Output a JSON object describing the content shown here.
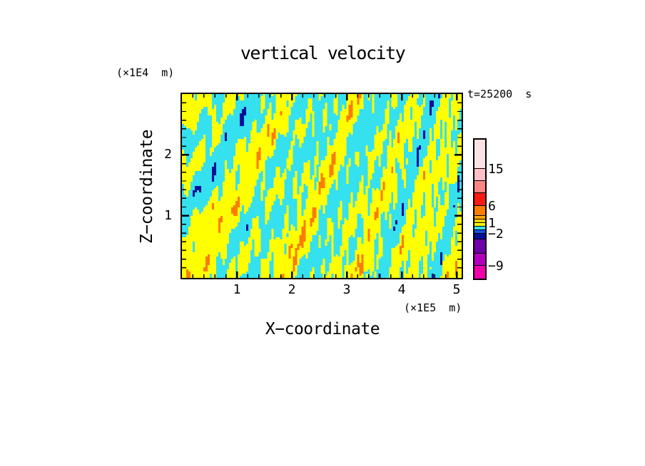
{
  "figure_background": "#FFFFFF",
  "chart_data": {
    "type": "heatmap",
    "title": "vertical velocity",
    "time_annotation": "t=25200  s",
    "xlabel": "X−coordinate",
    "x_units_label": "(×1E5  m)",
    "xlim": [
      0,
      5.09
    ],
    "x_ticks_major": [
      1,
      2,
      3,
      4,
      5
    ],
    "x_minors_per_major": 5,
    "zlabel": "Z−coordinate",
    "z_units_label": "(×1E4  m)",
    "zlim": [
      0,
      3.0
    ],
    "z_ticks_major": [
      1,
      2
    ],
    "z_minors_per_major": 7,
    "grid": false,
    "legend_position": "right-colorbar",
    "field_meaning": "binary-looking filled contours: yellow = positive vertical velocity, cyan = negative; rare extreme specks in orange (strong up) and navy (strong down)",
    "field_colors": {
      "positive": "#FFFF00",
      "negative": "#35E0EF"
    },
    "colorbar": {
      "segments": [
        {
          "color": "#FBE3E3",
          "h": 41
        },
        {
          "color": "#FFBFC6",
          "h": 17
        },
        {
          "color": "#F98585",
          "h": 17
        },
        {
          "color": "#FB1A12",
          "h": 18
        },
        {
          "color": "#FA7D00",
          "h": 14
        },
        {
          "color": "#FFA800",
          "h": 5
        },
        {
          "color": "#FFD400",
          "h": 5
        },
        {
          "color": "#FFFF00",
          "h": 5
        },
        {
          "color": "#35E0EF",
          "h": 5
        },
        {
          "color": "#1453E8",
          "h": 5
        },
        {
          "color": "#001299",
          "h": 8
        },
        {
          "color": "#6E00AA",
          "h": 20
        },
        {
          "color": "#B400BE",
          "h": 17
        },
        {
          "color": "#F200AC",
          "h": 18
        }
      ],
      "labels": [
        {
          "text": "15",
          "boundary": 1
        },
        {
          "text": "6",
          "boundary": 4
        },
        {
          "text": "1",
          "boundary": 7
        },
        {
          "text": "−2",
          "boundary": 10
        },
        {
          "text": "−9",
          "boundary": 13
        }
      ]
    },
    "field": {
      "grid": [
        131,
        86
      ],
      "compress": 0.8,
      "bias": -0.15,
      "bottom_bias": 0.55,
      "speck_hi": 2.6,
      "speck_lo": -2.75,
      "speck_colors": {
        "high": "#FA7D00",
        "low": "#001299"
      },
      "components": [
        [
          1.0,
          2.3,
          1.1,
          0.7
        ],
        [
          0.8,
          4.1,
          2.0,
          2.1
        ],
        [
          0.7,
          7.0,
          3.1,
          4.4
        ],
        [
          0.6,
          11.5,
          -2.2,
          1.3
        ],
        [
          0.55,
          18.0,
          4.0,
          5.2
        ],
        [
          0.45,
          27.0,
          2.5,
          3.0
        ],
        [
          0.45,
          1.2,
          3.2,
          0.2
        ]
      ]
    }
  }
}
